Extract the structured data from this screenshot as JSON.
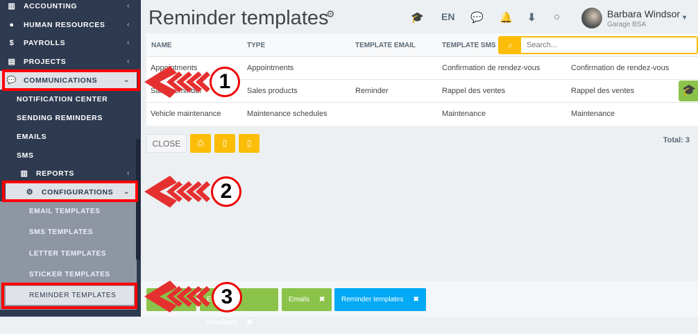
{
  "sidebar": {
    "items": [
      {
        "label": "ACCOUNTING",
        "icon": "bar-chart-icon"
      },
      {
        "label": "HUMAN RESOURCES",
        "icon": "user-icon"
      },
      {
        "label": "PAYROLLS",
        "icon": "dollar-icon"
      },
      {
        "label": "PROJECTS",
        "icon": "projects-icon"
      },
      {
        "label": "COMMUNICATIONS",
        "icon": "comments-icon"
      }
    ],
    "comm_sub": [
      "NOTIFICATION CENTER",
      "SENDING REMINDERS",
      "EMAILS",
      "SMS"
    ],
    "reports": "REPORTS",
    "configurations": "CONFIGURATIONS",
    "config_sub": [
      "EMAIL TEMPLATES",
      "SMS TEMPLATES",
      "LETTER TEMPLATES",
      "STICKER TEMPLATES",
      "REMINDER TEMPLATES"
    ]
  },
  "header": {
    "title": "Reminder templates",
    "lang": "EN",
    "user_name": "Barbara Windsor",
    "company": "Garage BSA"
  },
  "table": {
    "columns": [
      "NAME",
      "TYPE",
      "TEMPLATE EMAIL",
      "TEMPLATE SMS"
    ],
    "rows": [
      [
        "Appointments",
        "Appointments",
        "",
        "Confirmation de rendez-vous",
        "Confirmation de rendez-vous"
      ],
      [
        "Sales reminder",
        "Sales products",
        "Reminder",
        "Rappel des ventes",
        "Rappel des ventes"
      ],
      [
        "Vehicle maintenance",
        "Maintenance schedules",
        "",
        "Maintenance",
        "Maintenance"
      ]
    ],
    "search_placeholder": "Search...",
    "close": "CLOSE",
    "total": "Total: 3"
  },
  "tabs": [
    "",
    "Email templates",
    "Emails",
    "Reminder templates"
  ],
  "annotations": [
    "1",
    "2",
    "3"
  ],
  "colors": {
    "sidebar": "#2d3a50",
    "accent": "#fbbd08",
    "green": "#8bc34a",
    "blue": "#03a9f4",
    "annotation": "#e53030"
  }
}
